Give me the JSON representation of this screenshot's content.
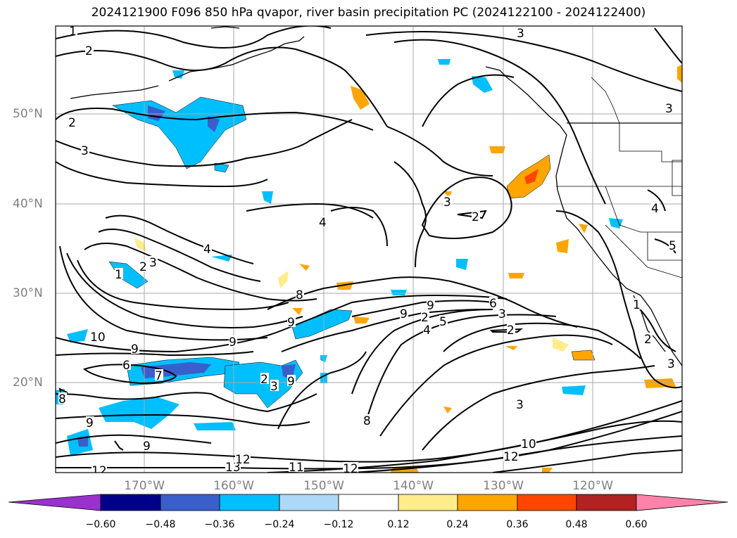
{
  "title": "2024121900 F096 850 hPa qvapor, river basin precipitation PC (2024122100 - 2024122400)",
  "lat_labels": [
    "50°N",
    "40°N",
    "30°N",
    "20°N"
  ],
  "lon_labels": [
    "170°W",
    "160°W",
    "150°W",
    "140°W",
    "130°W",
    "120°W"
  ],
  "contour_labels": [
    "1",
    "2",
    "3",
    "2",
    "3",
    "4",
    "4",
    "2",
    "3",
    "3",
    "2",
    "3",
    "4",
    "5",
    "1",
    "2",
    "3",
    "8",
    "9",
    "9",
    "9",
    "9",
    "10",
    "9",
    "6",
    "7",
    "8",
    "9",
    "9",
    "9",
    "8",
    "6",
    "3",
    "5",
    "4",
    "2",
    "2",
    "3",
    "10",
    "12",
    "13",
    "12",
    "11",
    "12",
    "12",
    "1",
    "2",
    "3"
  ],
  "colorbar": {
    "tick_labels": [
      "−0.60",
      "−0.48",
      "−0.36",
      "−0.24",
      "−0.12",
      "0.12",
      "0.24",
      "0.36",
      "0.48",
      "0.60"
    ],
    "colors": [
      "#9932CC",
      "#00008B",
      "#3A5FCD",
      "#00BFFF",
      "#ADD8F7",
      "#FFFFFF",
      "#FFEC8B",
      "#FFA500",
      "#FF4500",
      "#B22222",
      "#FF82AB"
    ]
  },
  "map_colors": {
    "ocean": "#ffffff",
    "grid": "#a9a9a9",
    "contour": "#000000"
  }
}
